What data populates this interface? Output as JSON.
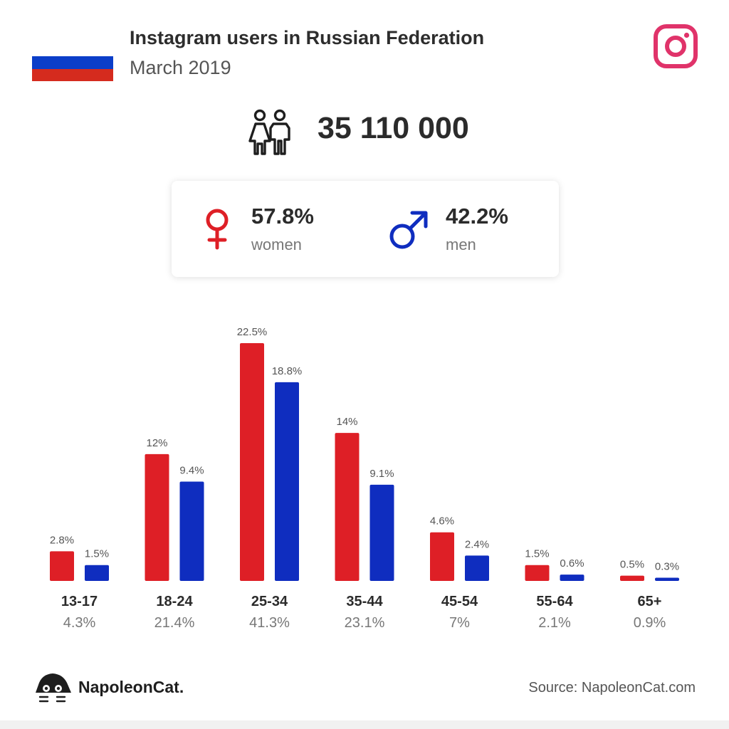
{
  "header": {
    "title": "Instagram users in Russian Federation",
    "subtitle": "March 2019"
  },
  "icons": {
    "flag": "russia-flag-icon",
    "instagram": "instagram-icon",
    "users": "people-icon",
    "female": "female-symbol-icon",
    "male": "male-symbol-icon",
    "logo": "napoleoncat-logo-icon"
  },
  "colors": {
    "women": "#de1f26",
    "men": "#0f2dbf",
    "instagram": "#e0336a",
    "flag_white": "#ffffff",
    "flag_blue": "#0b3ec9",
    "flag_red": "#d52b1e"
  },
  "total_users": "35 110 000",
  "gender": {
    "women": {
      "pct": "57.8%",
      "label": "women"
    },
    "men": {
      "pct": "42.2%",
      "label": "men"
    }
  },
  "chart_data": {
    "type": "bar",
    "categories": [
      "13-17",
      "18-24",
      "25-34",
      "35-44",
      "45-54",
      "55-64",
      "65+"
    ],
    "category_totals": [
      "4.3%",
      "21.4%",
      "41.3%",
      "23.1%",
      "7%",
      "2.1%",
      "0.9%"
    ],
    "series": [
      {
        "name": "women",
        "values": [
          2.8,
          12,
          22.5,
          14,
          4.6,
          1.5,
          0.5
        ],
        "labels": [
          "2.8%",
          "12%",
          "22.5%",
          "14%",
          "4.6%",
          "1.5%",
          "0.5%"
        ],
        "color": "#de1f26"
      },
      {
        "name": "men",
        "values": [
          1.5,
          9.4,
          18.8,
          9.1,
          2.4,
          0.6,
          0.3
        ],
        "labels": [
          "1.5%",
          "9.4%",
          "18.8%",
          "9.1%",
          "2.4%",
          "0.6%",
          "0.3%"
        ],
        "color": "#0f2dbf"
      }
    ],
    "ylim": [
      0,
      22.5
    ],
    "grid": false,
    "legend": "none"
  },
  "footer": {
    "brand": "NapoleonCat.",
    "source": "Source: NapoleonCat.com"
  }
}
